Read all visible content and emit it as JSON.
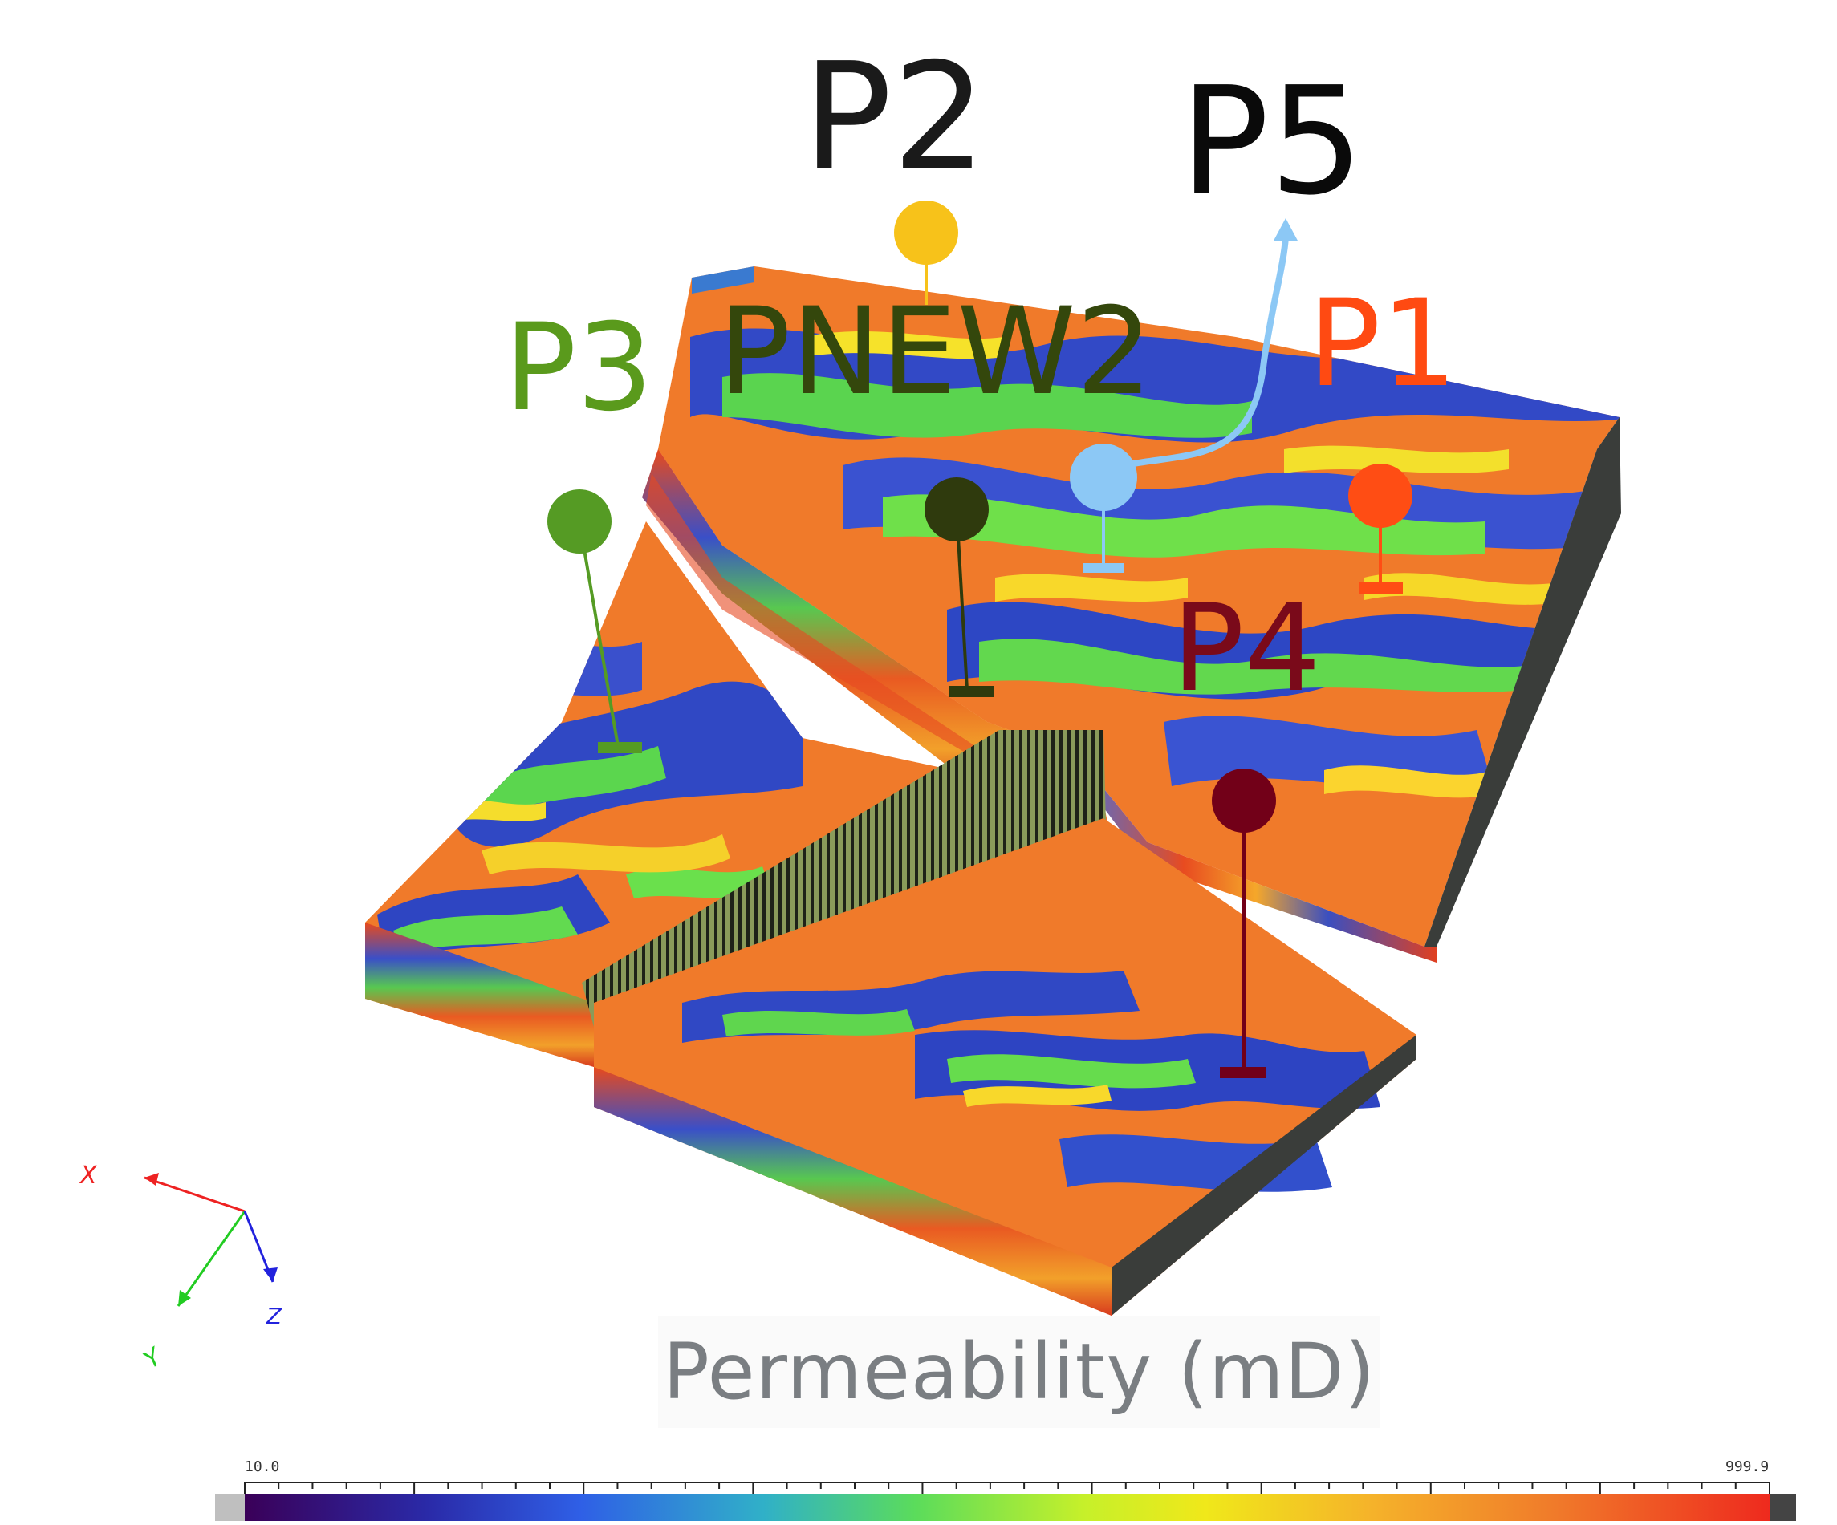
{
  "wells": [
    {
      "name": "P2",
      "color": "#1a1a1a",
      "marker_color": "#f7c21a"
    },
    {
      "name": "P5",
      "color": "#0a0a0a",
      "marker_color": "#8cc8f5"
    },
    {
      "name": "P3",
      "color": "#5a9a1c",
      "marker_color": "#559b24"
    },
    {
      "name": "PNEW2",
      "color": "#34470c",
      "marker_color": "#2f3a0d"
    },
    {
      "name": "P1",
      "color": "#ff4a12",
      "marker_color": "#ff4d14"
    },
    {
      "name": "P4",
      "color": "#7a0a1a",
      "marker_color": "#720018"
    }
  ],
  "axes": {
    "x_label": "X",
    "y_label": "Y",
    "z_label": "Z"
  },
  "colorbar": {
    "title": "Permeability (mD)",
    "min_label": "10.0",
    "max_label": "999.9",
    "colors": [
      "#3a0058",
      "#2a2aa8",
      "#2f5fe6",
      "#30b0c8",
      "#5bdc5b",
      "#c6f02a",
      "#f0e81a",
      "#f5b22a",
      "#f07a2a",
      "#ee2a1e"
    ]
  }
}
